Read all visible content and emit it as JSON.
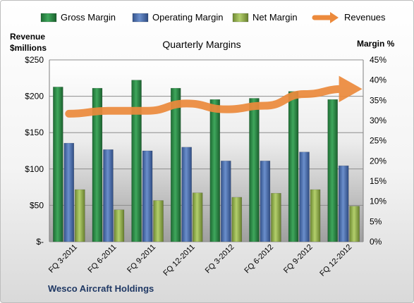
{
  "chart_data": {
    "type": "bar",
    "title": "Quarterly Margins",
    "left_axis_label": [
      "Revenue",
      "$millions"
    ],
    "right_axis_label": "Margin %",
    "footer": "Wesco Aircraft Holdings",
    "categories": [
      "FQ 3-2011",
      "FQ 6-2011",
      "FQ 9-2011",
      "FQ 12-2011",
      "FQ 3-2012",
      "FQ 6-2012",
      "FQ 9-2012",
      "FQ 12-2012"
    ],
    "left_ylim": [
      0,
      250
    ],
    "right_ylim": [
      0,
      45
    ],
    "left_ticks": [
      "$-",
      "$50",
      "$100",
      "$150",
      "$200",
      "$250"
    ],
    "right_ticks": [
      "0%",
      "5%",
      "10%",
      "15%",
      "20%",
      "25%",
      "30%",
      "35%",
      "40%",
      "45%"
    ],
    "legend_position": "top",
    "series": [
      {
        "name": "Gross Margin",
        "axis": "right",
        "kind": "bar",
        "color": "#2e8b47",
        "values": [
          38.3,
          38.0,
          40.0,
          38.0,
          35.2,
          35.5,
          37.2,
          35.2
        ]
      },
      {
        "name": "Operating Margin",
        "axis": "right",
        "kind": "bar",
        "color": "#4a6fb0",
        "values": [
          24.4,
          22.8,
          22.5,
          23.4,
          20.0,
          20.0,
          22.2,
          18.8
        ]
      },
      {
        "name": "Net Margin",
        "axis": "right",
        "kind": "bar",
        "color": "#93b34c",
        "values": [
          12.9,
          7.9,
          10.2,
          12.1,
          11.0,
          12.0,
          12.9,
          8.8
        ]
      },
      {
        "name": "Revenues",
        "axis": "left",
        "kind": "line",
        "color": "#ec8a3c",
        "values": [
          176,
          180,
          180,
          190,
          182,
          187,
          203,
          210
        ]
      }
    ]
  }
}
